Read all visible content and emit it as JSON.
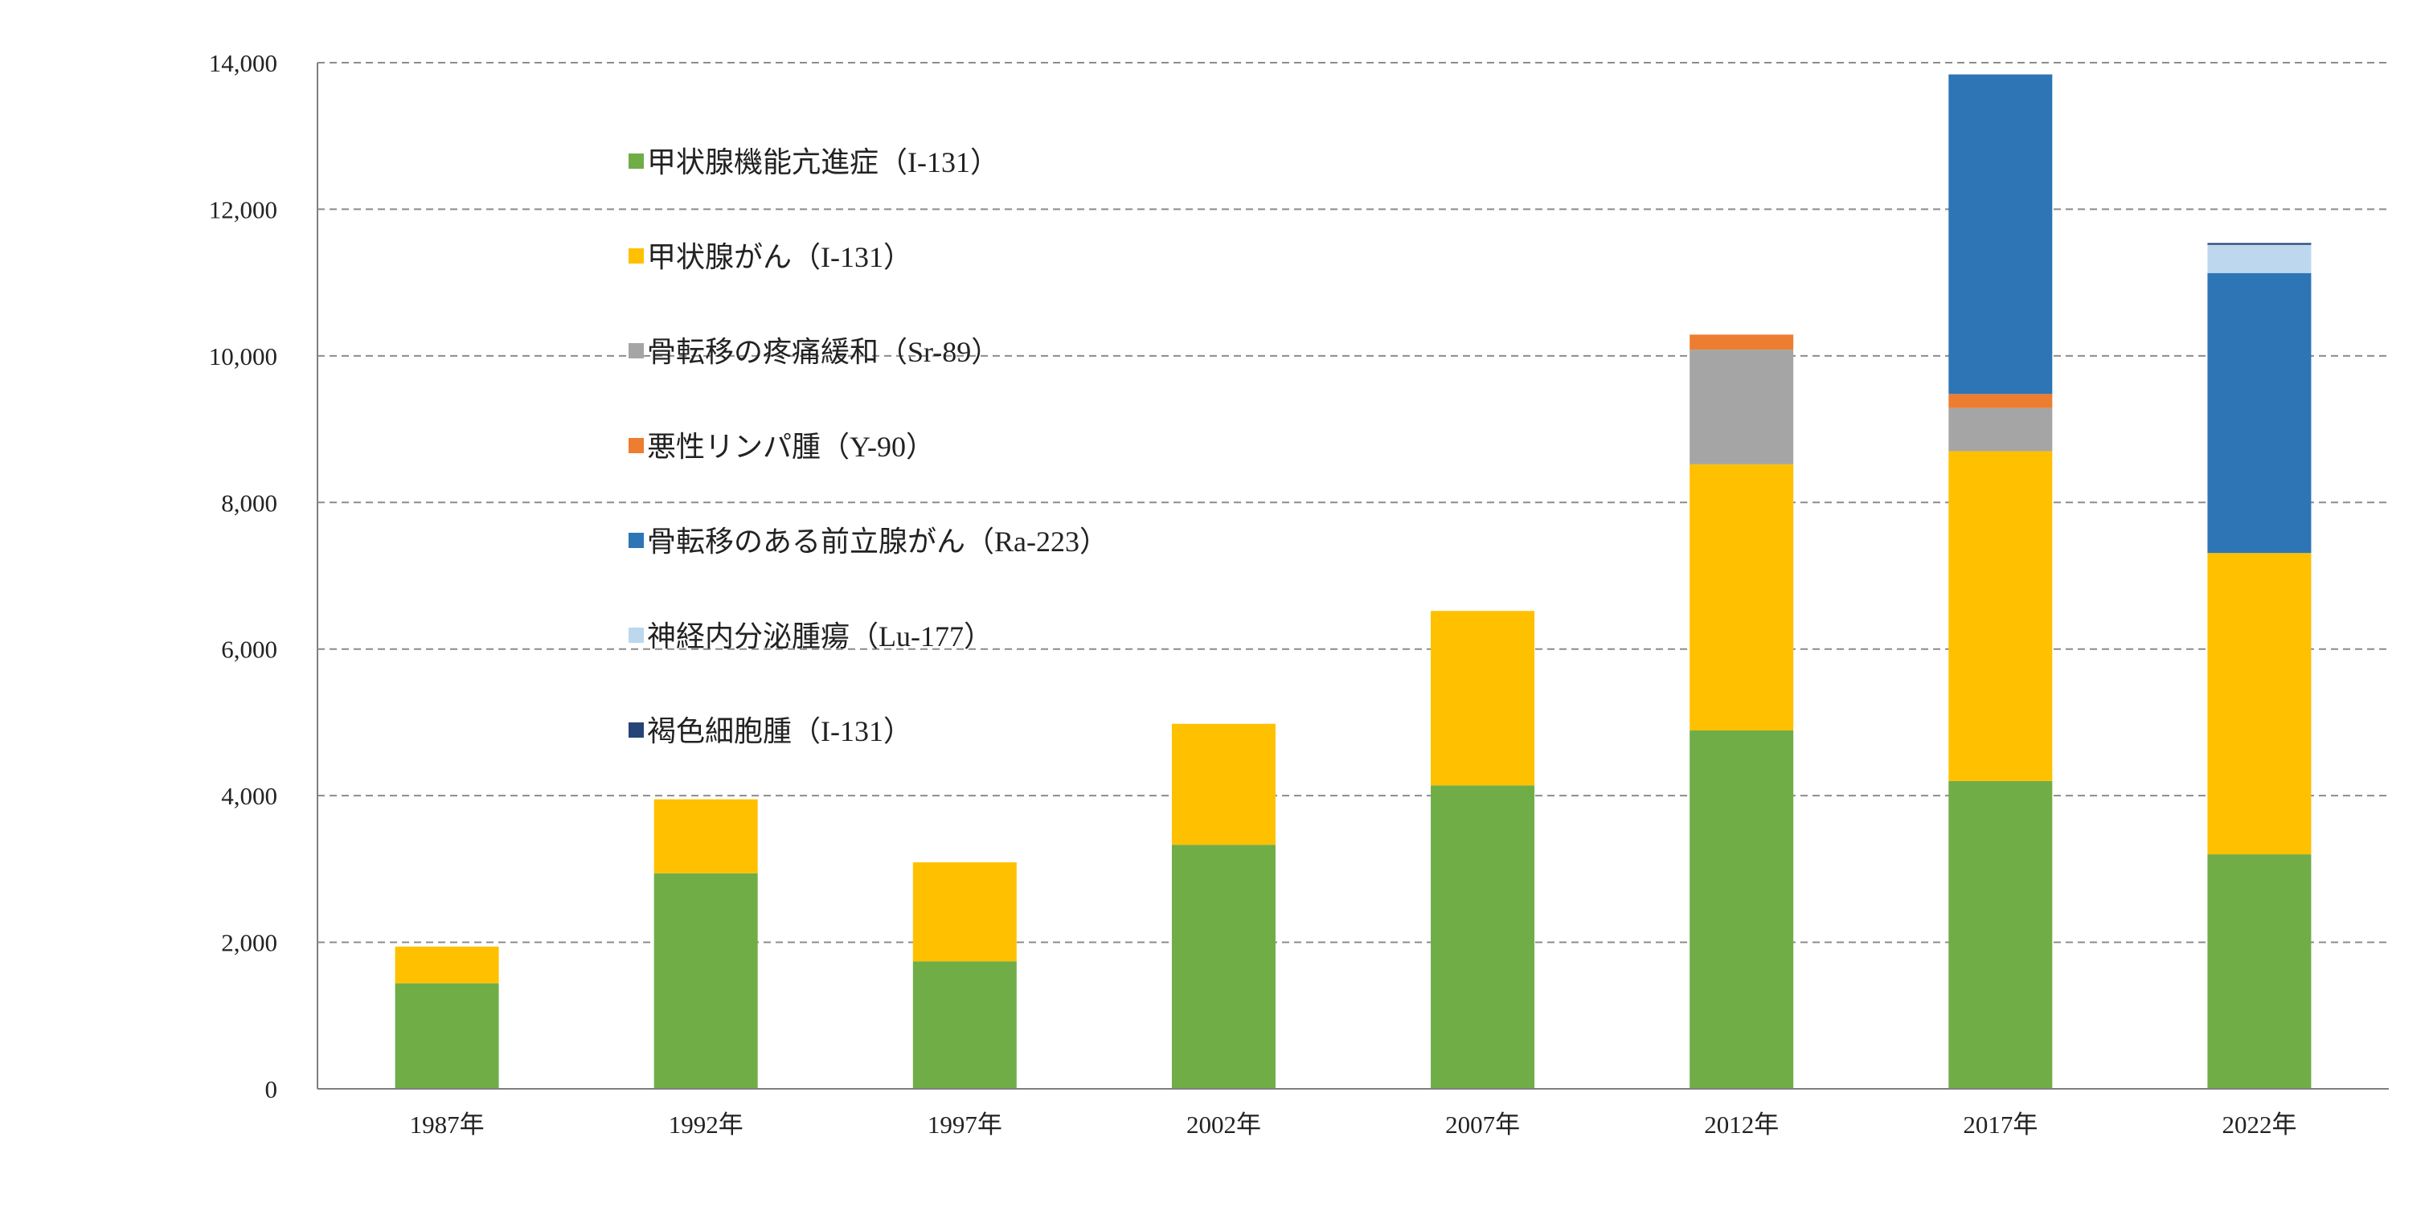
{
  "chart_data": {
    "type": "bar",
    "stacked": true,
    "title": "",
    "xlabel": "",
    "ylabel": "",
    "ylim": [
      0,
      14000
    ],
    "yticks": [
      "0",
      "2,000",
      "4,000",
      "6,000",
      "8,000",
      "10,000",
      "12,000",
      "14,000"
    ],
    "ytick_values": [
      0,
      2000,
      4000,
      6000,
      8000,
      10000,
      12000,
      14000
    ],
    "grid": "horizontal dashed",
    "legend_placement": "upper-left inside plot",
    "categories": [
      "1987年",
      "1992年",
      "1997年",
      "2002年",
      "2007年",
      "2012年",
      "2017年",
      "2022年"
    ],
    "series": [
      {
        "name": "甲状腺機能亢進症（I-131）",
        "color": "#70AD47",
        "values": [
          1440,
          2940,
          1740,
          3330,
          4140,
          4890,
          4200,
          3200
        ]
      },
      {
        "name": "甲状腺がん（I-131）",
        "color": "#FFC000",
        "values": [
          500,
          1010,
          1350,
          1650,
          2380,
          3630,
          4500,
          4110
        ]
      },
      {
        "name": "骨転移の疼痛緩和（Sr-89）",
        "color": "#A5A5A5",
        "values": [
          0,
          0,
          0,
          0,
          0,
          1565,
          590,
          0
        ]
      },
      {
        "name": "悪性リンパ腫（Y-90）",
        "color": "#ED7D31",
        "values": [
          0,
          0,
          0,
          0,
          0,
          205,
          190,
          0
        ]
      },
      {
        "name": "骨転移のある前立腺がん（Ra-223）",
        "color": "#2E75B6",
        "values": [
          0,
          0,
          0,
          0,
          0,
          0,
          4360,
          3820
        ]
      },
      {
        "name": "神経内分泌腫瘍（Lu-177）",
        "color": "#BDD7EE",
        "values": [
          0,
          0,
          0,
          0,
          0,
          0,
          0,
          385
        ]
      },
      {
        "name": "褐色細胞腫（I-131）",
        "color": "#264478",
        "values": [
          0,
          0,
          0,
          0,
          0,
          0,
          0,
          25
        ]
      }
    ]
  }
}
